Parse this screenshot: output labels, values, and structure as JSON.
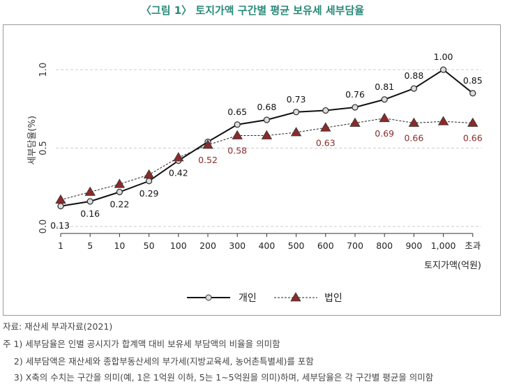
{
  "title": "〈그림 1〉 토지가액 구간별 평균 보유세 세부담율",
  "chart_data": {
    "type": "line",
    "title": "〈그림 1〉 토지가액 구간별 평균 보유세 세부담율",
    "xlabel": "토지가액(억원)",
    "ylabel": "세부담율(%)",
    "ylim": [
      0,
      1.0
    ],
    "yticks": [
      "0.0",
      "0.5",
      "1.0"
    ],
    "categories": [
      "1",
      "5",
      "10",
      "50",
      "100",
      "200",
      "300",
      "400",
      "500",
      "600",
      "700",
      "800",
      "900",
      "1,000",
      "초과"
    ],
    "grid": "horizontal dashed",
    "legend": "bottom",
    "series": [
      {
        "name": "개인",
        "color": "#111111",
        "marker": "circle",
        "line": "solid",
        "values": [
          0.13,
          0.16,
          0.22,
          0.29,
          0.42,
          0.54,
          0.65,
          0.68,
          0.73,
          0.74,
          0.76,
          0.81,
          0.88,
          1.0,
          0.85
        ],
        "labels": [
          "0.13",
          "0.16",
          "0.22",
          "0.29",
          "0.42",
          "",
          "0.65",
          "0.68",
          "0.73",
          "",
          "0.76",
          "0.81",
          "0.88",
          "1.00",
          "0.85"
        ]
      },
      {
        "name": "법인",
        "color": "#8b2a2a",
        "marker": "triangle",
        "line": "dashed",
        "values": [
          0.17,
          0.22,
          0.27,
          0.33,
          0.44,
          0.52,
          0.58,
          0.58,
          0.6,
          0.63,
          0.66,
          0.69,
          0.66,
          0.67,
          0.66
        ],
        "labels": [
          "",
          "",
          "",
          "",
          "",
          "0.52",
          "0.58",
          "",
          "",
          "0.63",
          "",
          "0.69",
          "0.66",
          "",
          "0.66"
        ]
      }
    ]
  },
  "notes": [
    "자료: 재산세 부과자료(2021)",
    "주 1) 세부담율은 인별 공시지가 합계액 대비 보유세 부담액의 비율을 의미함",
    "    2) 세부담액은 재산세와 종합부동산세의 부가세(지방교육세, 농어촌특별세)를 포함",
    "    3) X축의 수치는 구간을 의미(예, 1은 1억원 이하, 5는 1~5억원을 의미)하며, 세부담율은 각 구간별 평균을 의미함"
  ]
}
